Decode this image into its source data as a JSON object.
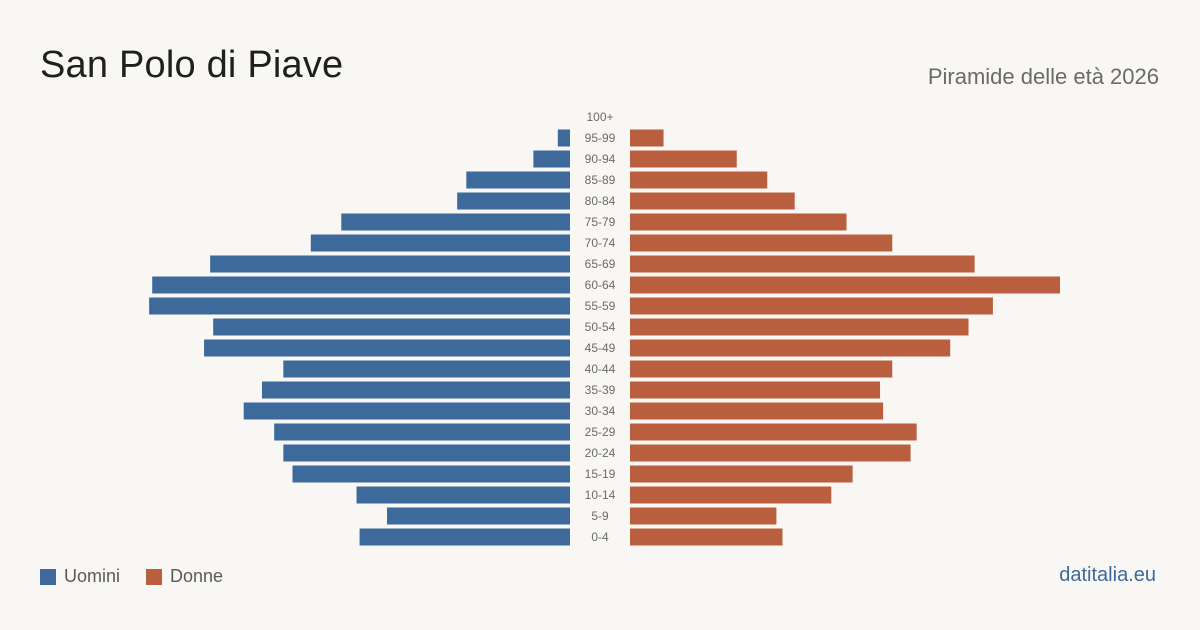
{
  "header": {
    "title": "San Polo di Piave",
    "subtitle": "Piramide delle età 2026"
  },
  "footer": {
    "source": "datitalia.eu"
  },
  "legend": [
    {
      "label": "Uomini",
      "color": "#3d6a9b"
    },
    {
      "label": "Donne",
      "color": "#b95f3f"
    }
  ],
  "chart_data": {
    "type": "bar",
    "orientation": "horizontal-pyramid",
    "categories": [
      "100+",
      "95-99",
      "90-94",
      "85-89",
      "80-84",
      "75-79",
      "70-74",
      "65-69",
      "60-64",
      "55-59",
      "50-54",
      "45-49",
      "40-44",
      "35-39",
      "30-34",
      "25-29",
      "20-24",
      "15-19",
      "10-14",
      "5-9",
      "0-4"
    ],
    "series": [
      {
        "name": "Uomini",
        "color": "#3d6a9b",
        "values": [
          0,
          4,
          12,
          34,
          37,
          75,
          85,
          118,
          137,
          138,
          117,
          120,
          94,
          101,
          107,
          97,
          94,
          91,
          70,
          60,
          69
        ]
      },
      {
        "name": "Donne",
        "color": "#b95f3f",
        "values": [
          0,
          11,
          35,
          45,
          54,
          71,
          86,
          113,
          141,
          119,
          111,
          105,
          86,
          82,
          83,
          94,
          92,
          73,
          66,
          48,
          50
        ]
      }
    ],
    "legend_position": "bottom-left",
    "grid": false
  }
}
